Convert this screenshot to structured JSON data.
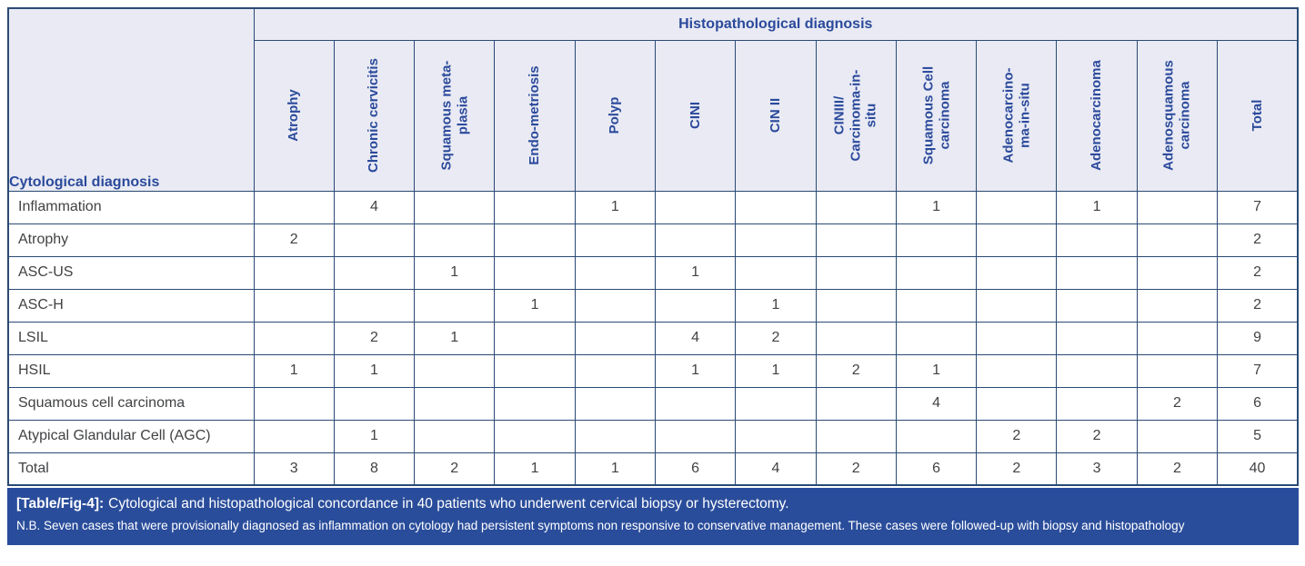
{
  "table": {
    "top_header": "Histopathological diagnosis",
    "row_header": "Cytological diagnosis",
    "columns": [
      "Atrophy",
      "Chronic cervicitis",
      "Squamous meta-\nplasia",
      "Endo-metriosis",
      "Polyp",
      "CINI",
      "CIN II",
      "CINIII/\nCarcinoma-in-\nsitu",
      "Squamous Cell\ncarcinoma",
      "Adenocarcino-\nma-in-situ",
      "Adenocarcinoma",
      "Adenosquamous\ncarcinoma",
      "Total"
    ],
    "rows": [
      {
        "label": "Inflammation",
        "values": [
          "",
          "4",
          "",
          "",
          "1",
          "",
          "",
          "",
          "1",
          "",
          "1",
          "",
          "7"
        ]
      },
      {
        "label": "Atrophy",
        "values": [
          "2",
          "",
          "",
          "",
          "",
          "",
          "",
          "",
          "",
          "",
          "",
          "",
          "2"
        ]
      },
      {
        "label": "ASC-US",
        "values": [
          "",
          "",
          "1",
          "",
          "",
          "1",
          "",
          "",
          "",
          "",
          "",
          "",
          "2"
        ]
      },
      {
        "label": "ASC-H",
        "values": [
          "",
          "",
          "",
          "1",
          "",
          "",
          "1",
          "",
          "",
          "",
          "",
          "",
          "2"
        ]
      },
      {
        "label": "LSIL",
        "values": [
          "",
          "2",
          "1",
          "",
          "",
          "4",
          "2",
          "",
          "",
          "",
          "",
          "",
          "9"
        ]
      },
      {
        "label": "HSIL",
        "values": [
          "1",
          "1",
          "",
          "",
          "",
          "1",
          "1",
          "2",
          "1",
          "",
          "",
          "",
          "7"
        ]
      },
      {
        "label": "Squamous cell carcinoma",
        "values": [
          "",
          "",
          "",
          "",
          "",
          "",
          "",
          "",
          "4",
          "",
          "",
          "2",
          "6"
        ]
      },
      {
        "label": "Atypical Glandular Cell (AGC)",
        "values": [
          "",
          "1",
          "",
          "",
          "",
          "",
          "",
          "",
          "",
          "2",
          "2",
          "",
          "5"
        ]
      },
      {
        "label": "Total",
        "values": [
          "3",
          "8",
          "2",
          "1",
          "1",
          "6",
          "4",
          "2",
          "6",
          "2",
          "3",
          "2",
          "40"
        ]
      }
    ]
  },
  "caption": {
    "tag": "[Table/Fig-4]:",
    "title": "Cytological and histopathological concordance in 40 patients who underwent cervical biopsy or hysterectomy.",
    "note": "N.B. Seven cases that were provisionally diagnosed as inflammation on cytology had persistent symptoms non responsive to conservative management. These cases were followed-up with biopsy and histopathology"
  },
  "colors": {
    "grid": "#2a4a74",
    "header_text": "#2b4a9c",
    "header_bg": "#e9eaf3",
    "body_text": "#414244",
    "caption_bg": "#2a4d9b",
    "caption_text": "#ffffff"
  }
}
